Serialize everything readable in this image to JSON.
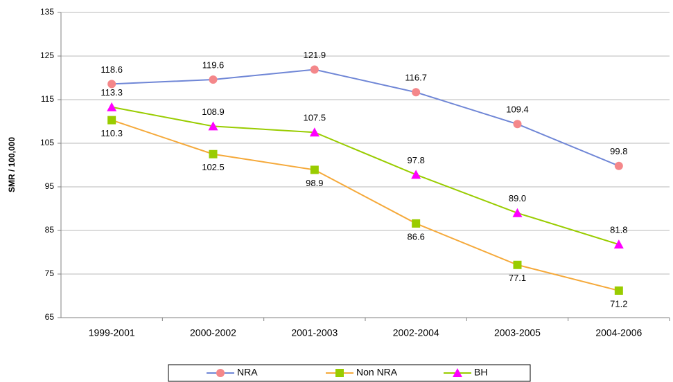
{
  "chart_data": {
    "type": "line",
    "y_label": "SMR / 100,000",
    "categories": [
      "1999-2001",
      "2000-2002",
      "2001-2003",
      "2002-2004",
      "2003-2005",
      "2004-2006"
    ],
    "series": [
      {
        "name": "NRA",
        "color": "#6f86d6",
        "marker_color": "#f4878a",
        "marker": "circle",
        "values": [
          118.6,
          119.6,
          121.9,
          116.7,
          109.4,
          99.8
        ],
        "label_side": "above",
        "value_labels": [
          "118.6",
          "119.6",
          "121.9",
          "116.7",
          "109.4",
          "99.8"
        ]
      },
      {
        "name": "Non NRA",
        "color": "#f5a93a",
        "marker_color": "#99cc00",
        "marker": "square",
        "values": [
          110.3,
          102.5,
          98.9,
          86.6,
          77.1,
          71.2
        ],
        "label_side": "below",
        "value_labels": [
          "110.3",
          "102.5",
          "98.9",
          "86.6",
          "77.1",
          "71.2"
        ]
      },
      {
        "name": "BH",
        "color": "#99cc00",
        "marker_color": "#ff00ff",
        "marker": "triangle",
        "values": [
          113.3,
          108.9,
          107.5,
          97.8,
          89.0,
          81.8
        ],
        "label_side": "above",
        "value_labels": [
          "113.3",
          "108.9",
          "107.5",
          "97.8",
          "89.0",
          "81.8"
        ]
      }
    ],
    "ylim": [
      65,
      135
    ],
    "yticks": [
      65,
      75,
      85,
      95,
      105,
      115,
      125,
      135
    ],
    "grid": true
  }
}
